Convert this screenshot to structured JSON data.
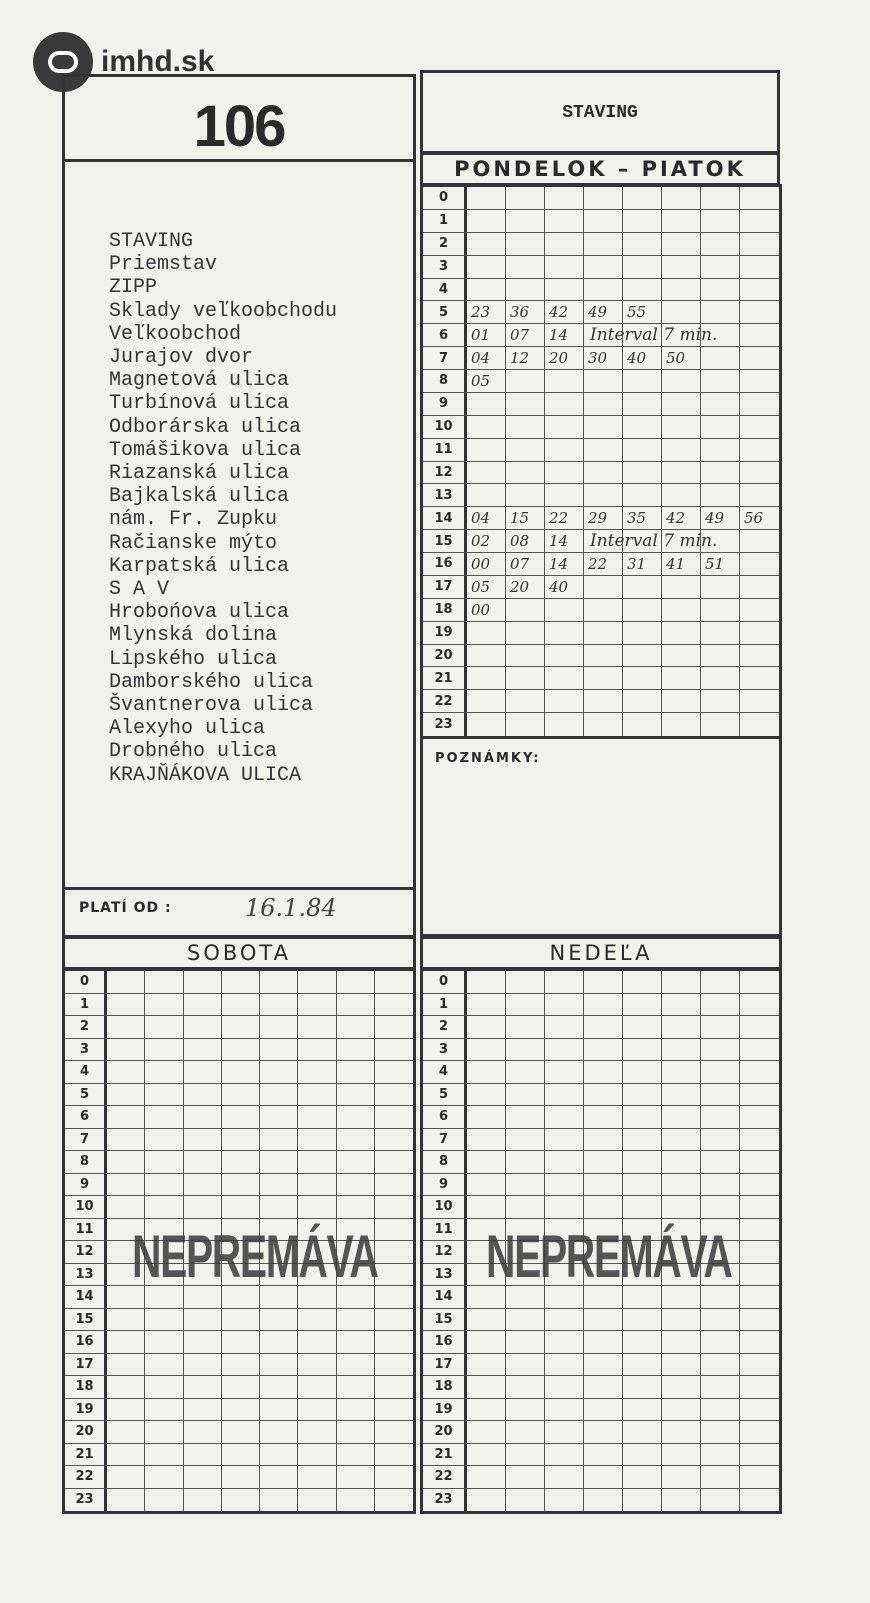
{
  "logo": {
    "text": "imhd.sk"
  },
  "line_number": "106",
  "destination": "STAVING",
  "stops": [
    "STAVING",
    "Priemstav",
    "ZIPP",
    "Sklady veľkoobchodu",
    "Veľkoobchod",
    "Jurajov dvor",
    "Magnetová ulica",
    "Turbínová ulica",
    "Odborárska ulica",
    "Tomášikova ulica",
    "Riazanská ulica",
    "Bajkalská ulica",
    "nám. Fr. Zupku",
    "Račianske mýto",
    "Karpatská ulica",
    "S A V",
    "Hrobońova ulica",
    "Mlynská dolina",
    "Lipského ulica",
    "Damborského ulica",
    "Švantnerova ulica",
    "Alexyho ulica",
    "Drobného ulica",
    "KRAJŇÁKOVA  ULICA"
  ],
  "valid_from": {
    "label": "PLATÍ OD :",
    "value": "16.1.84"
  },
  "notes_label": "POZNÁMKY:",
  "weekday": {
    "title": "PONDELOK  –  PIATOK",
    "rows": {
      "5": [
        "23",
        "36",
        "42",
        "49",
        "55"
      ],
      "6": [
        "01",
        "07",
        "14"
      ],
      "7": [
        "04",
        "12",
        "20",
        "30",
        "40",
        "50"
      ],
      "8": [
        "05"
      ],
      "14": [
        "04",
        "15",
        "22",
        "29",
        "35",
        "42",
        "49",
        "56"
      ],
      "15": [
        "02",
        "08",
        "14"
      ],
      "16": [
        "00",
        "07",
        "14",
        "22",
        "31",
        "41",
        "51"
      ],
      "17": [
        "05",
        "20",
        "40"
      ],
      "18": [
        "00"
      ]
    },
    "notes": {
      "6": "Interval 7 min.",
      "15": "Interval 7 min."
    }
  },
  "saturday": {
    "title": "SOBOTA",
    "stamp": "NEPREMÁVA"
  },
  "sunday": {
    "title": "NEDEĽA",
    "stamp": "NEPREMÁVA"
  }
}
